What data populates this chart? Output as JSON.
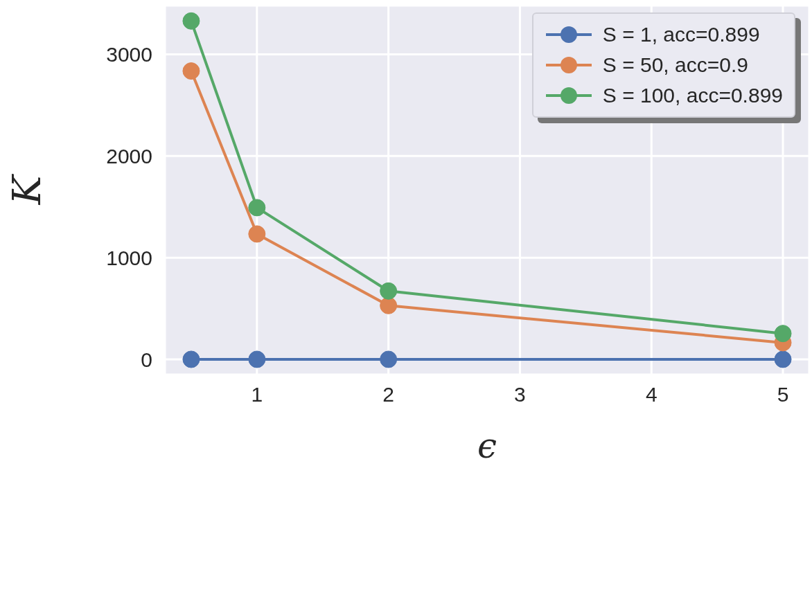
{
  "chart_data": {
    "type": "line",
    "xlabel": "ϵ",
    "ylabel": "K",
    "x": [
      0.5,
      1,
      2,
      5
    ],
    "series": [
      {
        "name": "S = 1, acc=0.899",
        "color": "#4c72b0",
        "values": [
          0,
          0,
          0,
          0
        ]
      },
      {
        "name": "S = 50, acc=0.9",
        "color": "#dd8452",
        "values": [
          2836,
          1233,
          529,
          164
        ]
      },
      {
        "name": "S = 100, acc=0.899",
        "color": "#55a868",
        "values": [
          3328,
          1492,
          672,
          254
        ]
      }
    ],
    "xlim": [
      0.3,
      5.2
    ],
    "xticks": [
      1,
      2,
      3,
      4,
      5
    ],
    "ylim": [
      -150,
      3480
    ],
    "yticks": [
      0,
      1000,
      2000,
      3000
    ],
    "grid": true,
    "legend": "top right",
    "marker": "circle",
    "line_style": "solid"
  }
}
